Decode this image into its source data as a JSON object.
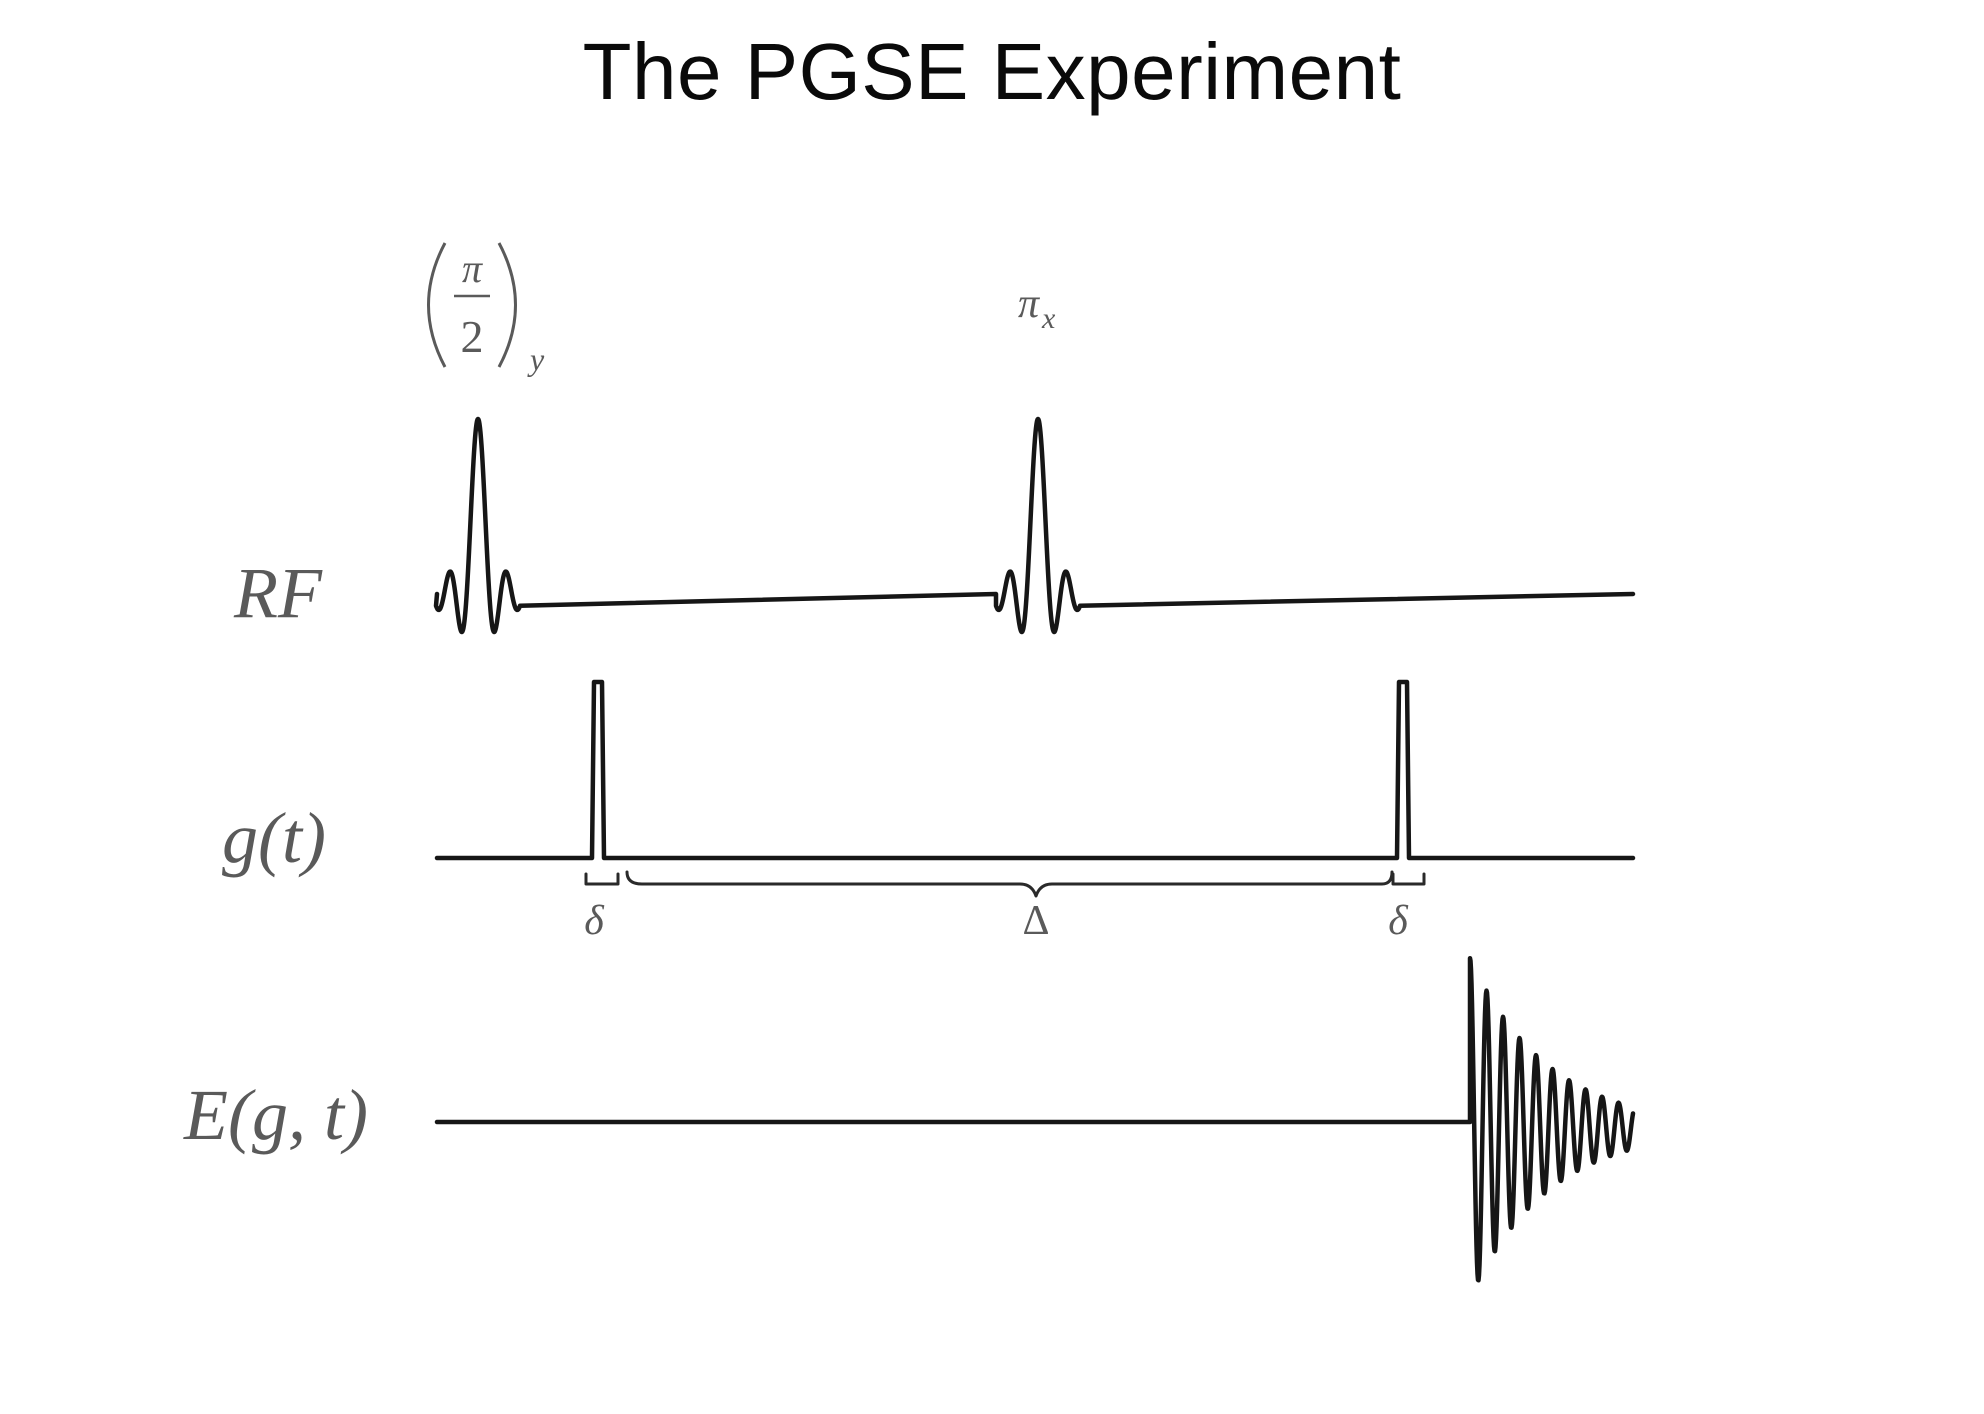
{
  "title": "The PGSE Experiment",
  "pulses": {
    "excitation": {
      "symbol": "π",
      "denominator": "2",
      "subscript": "y"
    },
    "refocus": {
      "symbol": "π",
      "subscript": "x"
    }
  },
  "channels": {
    "rf": "RF",
    "gradient": "g(t)",
    "echo": "E(g, t)"
  },
  "timing": {
    "small_delta": "δ",
    "big_delta": "Δ"
  }
}
